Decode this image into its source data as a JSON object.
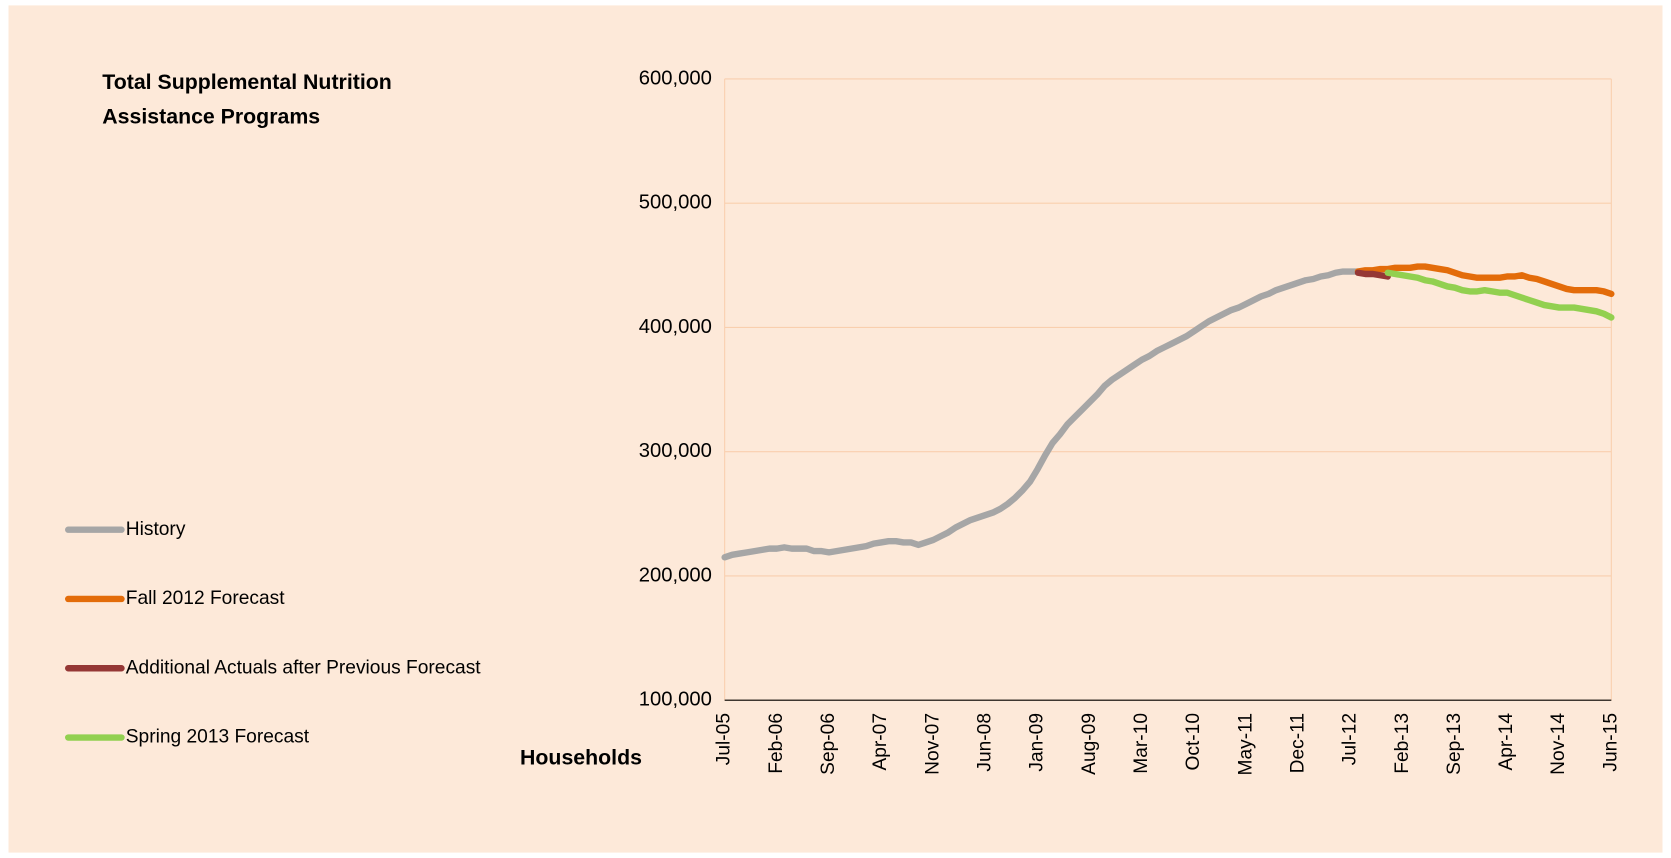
{
  "chart_data": {
    "type": "line",
    "title": "Total Supplemental Nutrition Assistance Programs",
    "y_label": "Households",
    "categories": [
      "Jul-05",
      null,
      null,
      null,
      null,
      null,
      null,
      "Feb-06",
      null,
      null,
      null,
      null,
      null,
      null,
      "Sep-06",
      null,
      null,
      null,
      null,
      null,
      null,
      "Apr-07",
      null,
      null,
      null,
      null,
      null,
      null,
      "Nov-07",
      null,
      null,
      null,
      null,
      null,
      null,
      "Jun-08",
      null,
      null,
      null,
      null,
      null,
      null,
      "Jan-09",
      null,
      null,
      null,
      null,
      null,
      null,
      "Aug-09",
      null,
      null,
      null,
      null,
      null,
      null,
      "Mar-10",
      null,
      null,
      null,
      null,
      null,
      null,
      "Oct-10",
      null,
      null,
      null,
      null,
      null,
      null,
      "May-11",
      null,
      null,
      null,
      null,
      null,
      null,
      "Dec-11",
      null,
      null,
      null,
      null,
      null,
      null,
      "Jul-12",
      null,
      null,
      null,
      null,
      null,
      null,
      "Feb-13",
      null,
      null,
      null,
      null,
      null,
      null,
      "Sep-13",
      null,
      null,
      null,
      null,
      null,
      null,
      "Apr-14",
      null,
      null,
      null,
      null,
      null,
      null,
      "Nov-14",
      null,
      null,
      null,
      null,
      null,
      null,
      "Jun-15"
    ],
    "series": [
      {
        "name": "History",
        "color": "#a6a6a6",
        "values": [
          215000,
          217000,
          218000,
          219000,
          220000,
          221000,
          222000,
          222000,
          223000,
          222000,
          222000,
          222000,
          220000,
          220000,
          219000,
          220000,
          221000,
          222000,
          223000,
          224000,
          226000,
          227000,
          228000,
          228000,
          227000,
          227000,
          225000,
          227000,
          229000,
          232000,
          235000,
          239000,
          242000,
          245000,
          247000,
          249000,
          251000,
          254000,
          258000,
          263000,
          269000,
          276000,
          286000,
          297000,
          307000,
          314000,
          322000,
          328000,
          334000,
          340000,
          346000,
          353000,
          358000,
          362000,
          366000,
          370000,
          374000,
          377000,
          381000,
          384000,
          387000,
          390000,
          393000,
          397000,
          401000,
          405000,
          408000,
          411000,
          414000,
          416000,
          419000,
          422000,
          425000,
          427000,
          430000,
          432000,
          434000,
          436000,
          438000,
          439000,
          441000,
          442000,
          444000,
          445000,
          445000,
          445000,
          null,
          null,
          null,
          null,
          null,
          null,
          null,
          null,
          null,
          null,
          null,
          null,
          null,
          null,
          null,
          null,
          null,
          null,
          null,
          null,
          null,
          null,
          null,
          null,
          null,
          null,
          null,
          null,
          null,
          null,
          null,
          null,
          null,
          null
        ]
      },
      {
        "name": "Fall 2012 Forecast",
        "color": "#e36c0a",
        "values": [
          null,
          null,
          null,
          null,
          null,
          null,
          null,
          null,
          null,
          null,
          null,
          null,
          null,
          null,
          null,
          null,
          null,
          null,
          null,
          null,
          null,
          null,
          null,
          null,
          null,
          null,
          null,
          null,
          null,
          null,
          null,
          null,
          null,
          null,
          null,
          null,
          null,
          null,
          null,
          null,
          null,
          null,
          null,
          null,
          null,
          null,
          null,
          null,
          null,
          null,
          null,
          null,
          null,
          null,
          null,
          null,
          null,
          null,
          null,
          null,
          null,
          null,
          null,
          null,
          null,
          null,
          null,
          null,
          null,
          null,
          null,
          null,
          null,
          null,
          null,
          null,
          null,
          null,
          null,
          null,
          null,
          null,
          null,
          null,
          null,
          445000,
          446000,
          446000,
          447000,
          447000,
          448000,
          448000,
          448000,
          449000,
          449000,
          448000,
          447000,
          446000,
          444000,
          442000,
          441000,
          440000,
          440000,
          440000,
          440000,
          441000,
          441000,
          442000,
          440000,
          439000,
          437000,
          435000,
          433000,
          431000,
          430000,
          430000,
          430000,
          430000,
          429000,
          427000
        ]
      },
      {
        "name": "Additional Actuals after Previous Forecast",
        "color": "#953735",
        "values": [
          null,
          null,
          null,
          null,
          null,
          null,
          null,
          null,
          null,
          null,
          null,
          null,
          null,
          null,
          null,
          null,
          null,
          null,
          null,
          null,
          null,
          null,
          null,
          null,
          null,
          null,
          null,
          null,
          null,
          null,
          null,
          null,
          null,
          null,
          null,
          null,
          null,
          null,
          null,
          null,
          null,
          null,
          null,
          null,
          null,
          null,
          null,
          null,
          null,
          null,
          null,
          null,
          null,
          null,
          null,
          null,
          null,
          null,
          null,
          null,
          null,
          null,
          null,
          null,
          null,
          null,
          null,
          null,
          null,
          null,
          null,
          null,
          null,
          null,
          null,
          null,
          null,
          null,
          null,
          null,
          null,
          null,
          null,
          null,
          null,
          444000,
          443000,
          443000,
          442000,
          441000,
          null,
          null,
          null,
          null,
          null,
          null,
          null,
          null,
          null,
          null,
          null,
          null,
          null,
          null,
          null,
          null,
          null,
          null,
          null,
          null,
          null,
          null,
          null,
          null,
          null,
          null,
          null,
          null,
          null,
          null
        ]
      },
      {
        "name": "Spring 2013 Forecast",
        "color": "#92d050",
        "values": [
          null,
          null,
          null,
          null,
          null,
          null,
          null,
          null,
          null,
          null,
          null,
          null,
          null,
          null,
          null,
          null,
          null,
          null,
          null,
          null,
          null,
          null,
          null,
          null,
          null,
          null,
          null,
          null,
          null,
          null,
          null,
          null,
          null,
          null,
          null,
          null,
          null,
          null,
          null,
          null,
          null,
          null,
          null,
          null,
          null,
          null,
          null,
          null,
          null,
          null,
          null,
          null,
          null,
          null,
          null,
          null,
          null,
          null,
          null,
          null,
          null,
          null,
          null,
          null,
          null,
          null,
          null,
          null,
          null,
          null,
          null,
          null,
          null,
          null,
          null,
          null,
          null,
          null,
          null,
          null,
          null,
          null,
          null,
          null,
          null,
          null,
          null,
          null,
          null,
          444000,
          443000,
          442000,
          441000,
          440000,
          438000,
          437000,
          435000,
          433000,
          432000,
          430000,
          429000,
          429000,
          430000,
          429000,
          428000,
          428000,
          426000,
          424000,
          422000,
          420000,
          418000,
          417000,
          416000,
          416000,
          416000,
          415000,
          414000,
          413000,
          411000,
          408000
        ]
      }
    ],
    "ylim": [
      100000,
      600000
    ],
    "yticks": [
      {
        "value": 100000,
        "label": "100,000"
      },
      {
        "value": 200000,
        "label": "200,000"
      },
      {
        "value": 300000,
        "label": "300,000"
      },
      {
        "value": 400000,
        "label": "400,000"
      },
      {
        "value": 500000,
        "label": "500,000"
      },
      {
        "value": 600000,
        "label": "600,000"
      }
    ],
    "grid": true,
    "legend": "left"
  }
}
